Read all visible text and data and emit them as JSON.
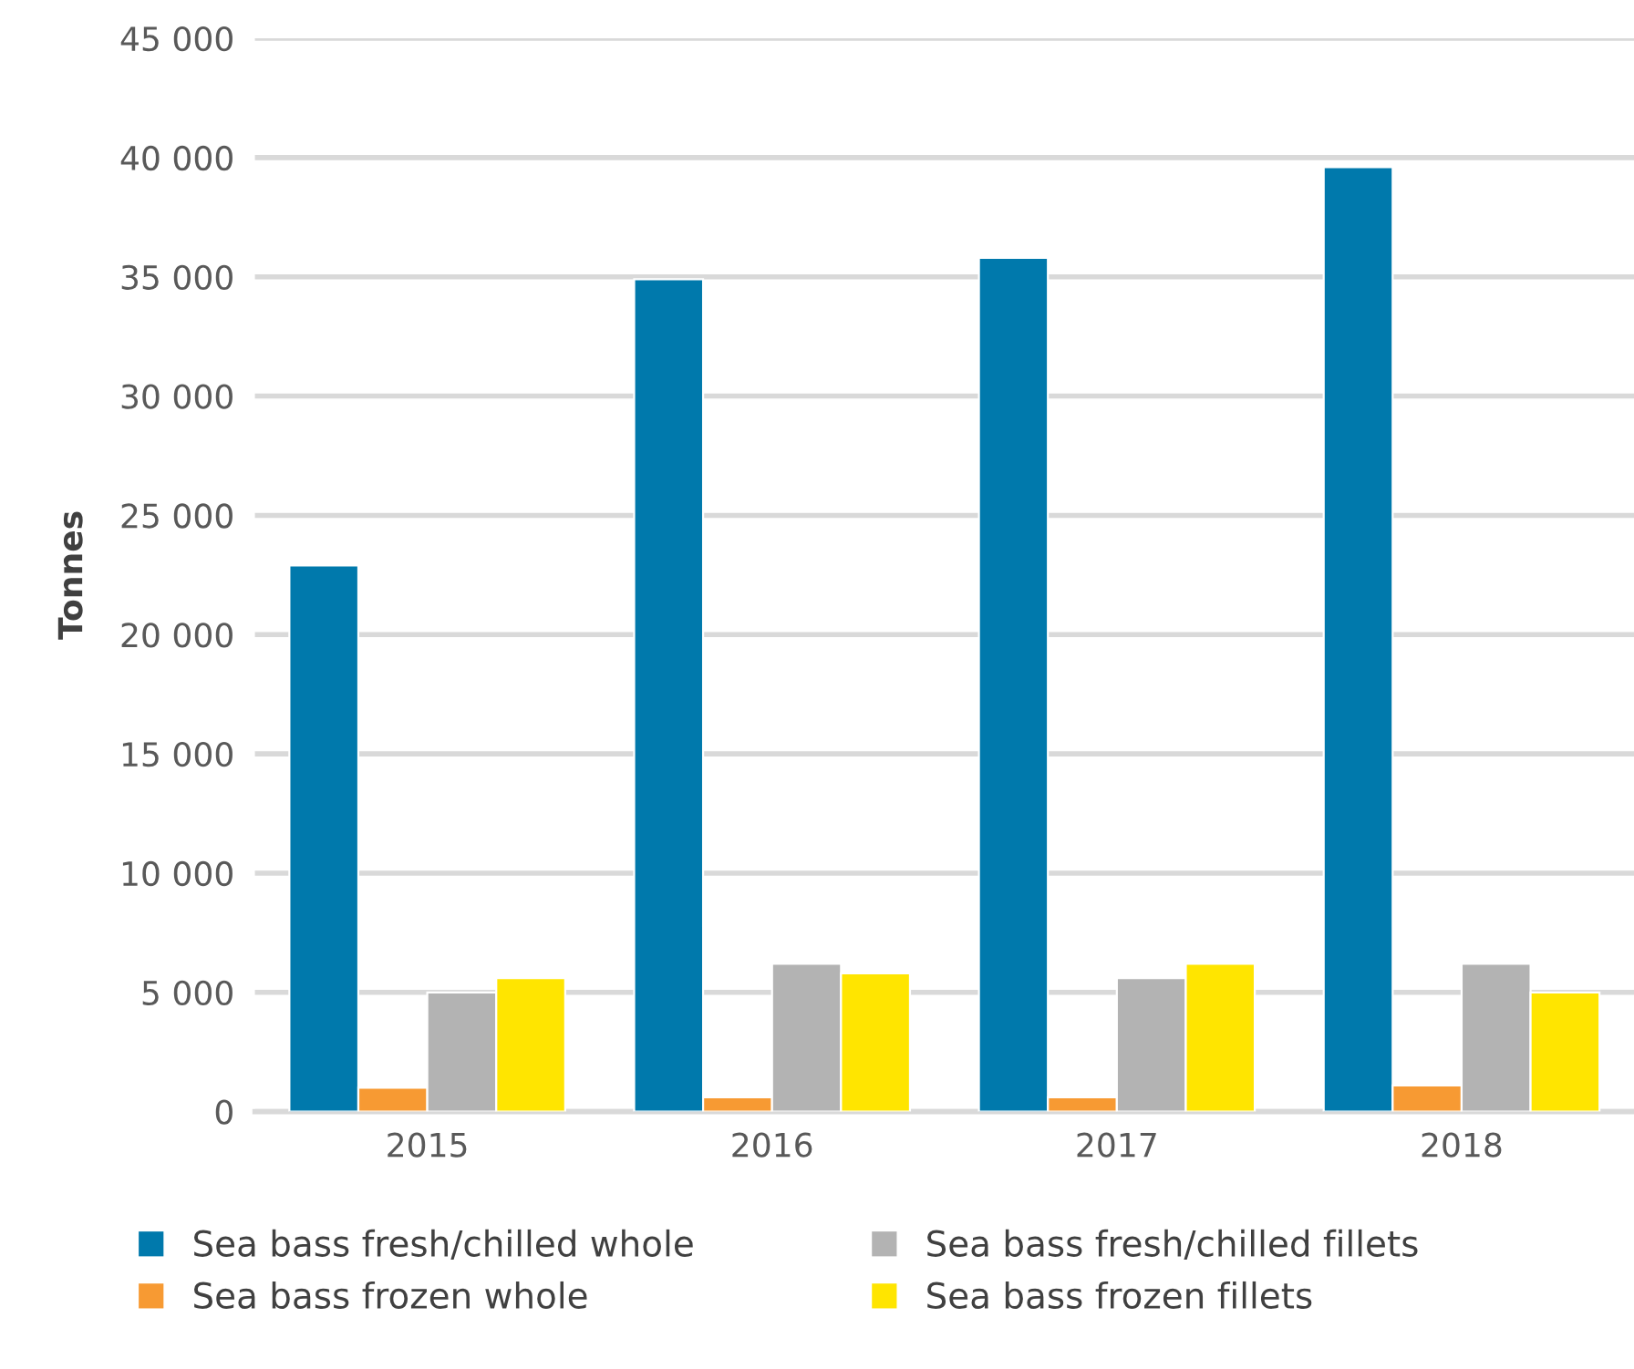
{
  "chart_data": {
    "type": "bar",
    "ylabel": "Tonnes",
    "categories": [
      "2015",
      "2016",
      "2017",
      "2018"
    ],
    "series": [
      {
        "name": "Sea bass fresh/chilled whole",
        "color": "#0079ac",
        "values": [
          22900,
          34900,
          35800,
          39600
        ]
      },
      {
        "name": "Sea bass frozen whole",
        "color": "#f79a33",
        "values": [
          1000,
          600,
          600,
          1100
        ]
      },
      {
        "name": "Sea bass fresh/chilled fillets",
        "color": "#b3b3b3",
        "values": [
          5000,
          6200,
          5600,
          6200
        ]
      },
      {
        "name": "Sea bass frozen fillets",
        "color": "#ffe500",
        "values": [
          5600,
          5800,
          6200,
          5000
        ]
      }
    ],
    "ylim": [
      0,
      45000
    ],
    "yticks": [
      {
        "value": 0,
        "label": "0"
      },
      {
        "value": 5000,
        "label": "5 000"
      },
      {
        "value": 10000,
        "label": "10 000"
      },
      {
        "value": 15000,
        "label": "15 000"
      },
      {
        "value": 20000,
        "label": "20 000"
      },
      {
        "value": 25000,
        "label": "25 000"
      },
      {
        "value": 30000,
        "label": "30 000"
      },
      {
        "value": 35000,
        "label": "35 000"
      },
      {
        "value": 40000,
        "label": "40 000"
      },
      {
        "value": 45000,
        "label": "45 000"
      }
    ],
    "grid": "y",
    "legend": "bottom"
  }
}
